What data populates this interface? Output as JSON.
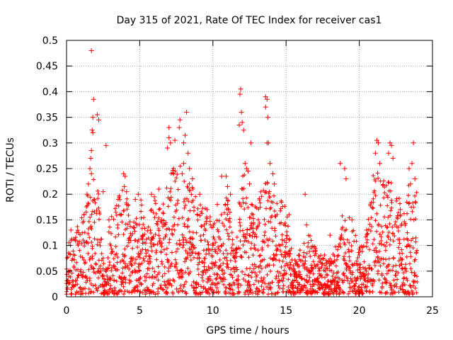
{
  "chart_data": {
    "type": "scatter",
    "title": "Day 315 of 2021, Rate Of TEC Index for receiver cas1",
    "xlabel": "GPS time / hours",
    "ylabel": "ROTI / TECUs",
    "xlim": [
      0,
      25
    ],
    "ylim": [
      0,
      0.5
    ],
    "grid": true,
    "xticks": [
      0,
      5,
      10,
      15,
      20,
      25
    ],
    "xtick_labels": [
      "0",
      "5",
      "10",
      "15",
      "20",
      "25"
    ],
    "yticks": [
      0,
      0.05,
      0.1,
      0.15,
      0.2,
      0.25,
      0.3,
      0.35,
      0.4,
      0.45,
      0.5
    ],
    "ytick_labels": [
      "0",
      "0.05",
      "0.1",
      "0.15",
      "0.2",
      "0.25",
      "0.3",
      "0.35",
      "0.4",
      "0.45",
      "0.5"
    ],
    "marker": "+",
    "marker_color": "#ff0000",
    "series": [
      {
        "name": "ROTI",
        "points": [
          [
            1.7,
            0.48
          ],
          [
            1.85,
            0.385
          ],
          [
            1.8,
            0.35
          ],
          [
            2.1,
            0.355
          ],
          [
            2.2,
            0.345
          ],
          [
            1.75,
            0.325
          ],
          [
            1.8,
            0.32
          ],
          [
            2.7,
            0.295
          ],
          [
            1.7,
            0.285
          ],
          [
            1.65,
            0.27
          ],
          [
            1.6,
            0.25
          ],
          [
            1.7,
            0.24
          ],
          [
            1.5,
            0.22
          ],
          [
            1.4,
            0.2
          ],
          [
            2.5,
            0.205
          ],
          [
            3.9,
            0.24
          ],
          [
            4.0,
            0.235
          ],
          [
            3.95,
            0.215
          ],
          [
            4.1,
            0.205
          ],
          [
            4.7,
            0.19
          ],
          [
            4.9,
            0.2
          ],
          [
            5.8,
            0.2
          ],
          [
            6.0,
            0.195
          ],
          [
            6.3,
            0.21
          ],
          [
            7.0,
            0.33
          ],
          [
            7.0,
            0.31
          ],
          [
            7.1,
            0.3
          ],
          [
            6.9,
            0.29
          ],
          [
            7.4,
            0.305
          ],
          [
            7.75,
            0.345
          ],
          [
            7.7,
            0.33
          ],
          [
            8.2,
            0.36
          ],
          [
            8.1,
            0.315
          ],
          [
            8.0,
            0.3
          ],
          [
            8.3,
            0.28
          ],
          [
            8.0,
            0.26
          ],
          [
            8.4,
            0.25
          ],
          [
            7.9,
            0.24
          ],
          [
            8.6,
            0.23
          ],
          [
            9.1,
            0.2
          ],
          [
            9.6,
            0.17
          ],
          [
            10.3,
            0.18
          ],
          [
            10.6,
            0.235
          ],
          [
            10.9,
            0.235
          ],
          [
            11.0,
            0.215
          ],
          [
            11.2,
            0.2
          ],
          [
            11.9,
            0.405
          ],
          [
            11.85,
            0.395
          ],
          [
            11.95,
            0.36
          ],
          [
            12.0,
            0.34
          ],
          [
            11.8,
            0.335
          ],
          [
            12.1,
            0.325
          ],
          [
            12.2,
            0.26
          ],
          [
            12.3,
            0.25
          ],
          [
            12.4,
            0.245
          ],
          [
            12.5,
            0.22
          ],
          [
            12.6,
            0.3
          ],
          [
            13.6,
            0.39
          ],
          [
            13.7,
            0.385
          ],
          [
            13.6,
            0.37
          ],
          [
            13.75,
            0.35
          ],
          [
            13.8,
            0.3
          ],
          [
            13.7,
            0.3
          ],
          [
            13.9,
            0.26
          ],
          [
            14.1,
            0.24
          ],
          [
            14.2,
            0.22
          ],
          [
            16.3,
            0.2
          ],
          [
            16.4,
            0.14
          ],
          [
            18.7,
            0.26
          ],
          [
            19.0,
            0.25
          ],
          [
            19.1,
            0.23
          ],
          [
            21.2,
            0.305
          ],
          [
            21.3,
            0.3
          ],
          [
            21.1,
            0.28
          ],
          [
            21.4,
            0.26
          ],
          [
            22.1,
            0.3
          ],
          [
            22.2,
            0.295
          ],
          [
            22.0,
            0.28
          ],
          [
            22.3,
            0.27
          ],
          [
            23.7,
            0.3
          ],
          [
            23.6,
            0.26
          ],
          [
            23.4,
            0.25
          ],
          [
            23.8,
            0.23
          ],
          [
            23.5,
            0.22
          ],
          [
            0.3,
            0.13
          ],
          [
            0.6,
            0.11
          ],
          [
            1.2,
            0.16
          ],
          [
            2.9,
            0.15
          ],
          [
            3.5,
            0.14
          ],
          [
            5.2,
            0.12
          ],
          [
            6.5,
            0.15
          ],
          [
            9.4,
            0.14
          ],
          [
            10.0,
            0.1
          ],
          [
            15.2,
            0.16
          ],
          [
            17.0,
            0.09
          ],
          [
            18.0,
            0.12
          ],
          [
            19.5,
            0.15
          ],
          [
            20.5,
            0.13
          ],
          [
            22.8,
            0.17
          ]
        ],
        "envelope_x": [
          0,
          0.5,
          1,
          1.5,
          1.8,
          2.2,
          2.6,
          3,
          3.5,
          4,
          4.5,
          5,
          5.5,
          6,
          6.5,
          7,
          7.5,
          8,
          8.5,
          9,
          9.5,
          10,
          10.5,
          11,
          11.5,
          12,
          12.5,
          13,
          13.5,
          14,
          14.5,
          15,
          15.5,
          16,
          16.5,
          17,
          17.5,
          18,
          18.5,
          19,
          19.5,
          20,
          20.5,
          21,
          21.5,
          22,
          22.5,
          23,
          23.5,
          23.9
        ],
        "envelope_y": [
          0.09,
          0.12,
          0.15,
          0.2,
          0.24,
          0.2,
          0.05,
          0.15,
          0.19,
          0.22,
          0.16,
          0.19,
          0.15,
          0.19,
          0.16,
          0.25,
          0.25,
          0.27,
          0.22,
          0.18,
          0.17,
          0.14,
          0.15,
          0.2,
          0.08,
          0.26,
          0.18,
          0.17,
          0.23,
          0.21,
          0.19,
          0.17,
          0.06,
          0.09,
          0.14,
          0.09,
          0.08,
          0.07,
          0.1,
          0.18,
          0.14,
          0.09,
          0.12,
          0.25,
          0.23,
          0.23,
          0.2,
          0.17,
          0.23,
          0.2
        ]
      }
    ]
  }
}
